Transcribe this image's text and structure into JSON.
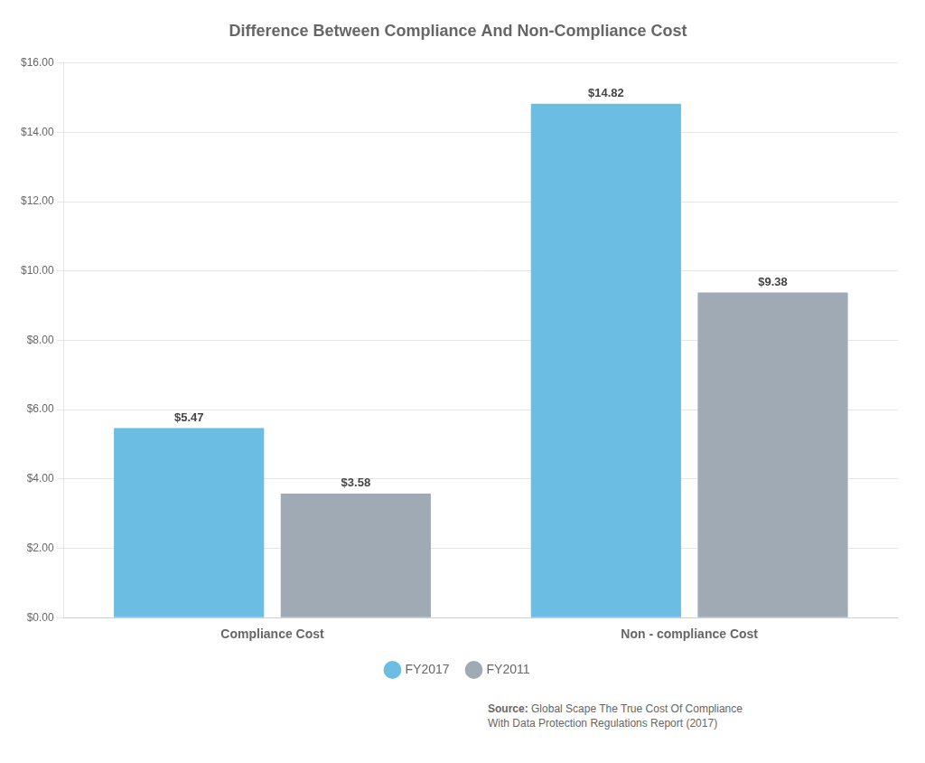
{
  "chart_data": {
    "type": "bar",
    "title": "Difference Between Compliance And Non-Compliance Cost",
    "categories": [
      "Compliance Cost",
      "Non - compliance Cost"
    ],
    "series": [
      {
        "name": "FY2017",
        "color": "#6BBDE3",
        "values": [
          5.47,
          14.82
        ],
        "value_labels": [
          "$5.47",
          "$14.82"
        ]
      },
      {
        "name": "FY2011",
        "color": "#9FAAB5",
        "values": [
          3.58,
          9.38
        ],
        "value_labels": [
          "$3.58",
          "$9.38"
        ]
      }
    ],
    "ylim": [
      0,
      16
    ],
    "yticks": [
      {
        "value": 0,
        "label": "$0.00"
      },
      {
        "value": 2,
        "label": "$2.00"
      },
      {
        "value": 4,
        "label": "$4.00"
      },
      {
        "value": 6,
        "label": "$6.00"
      },
      {
        "value": 8,
        "label": "$8.00"
      },
      {
        "value": 10,
        "label": "$10.00"
      },
      {
        "value": 12,
        "label": "$12.00"
      },
      {
        "value": 14,
        "label": "$14.00"
      },
      {
        "value": 16,
        "label": "$16.00"
      }
    ],
    "grid": true,
    "legend": "bottom",
    "data_labels": true,
    "annotations": [
      "Source:",
      "Global Scape The True Cost Of Compliance\nWith Data Protection Regulations Report (2017)"
    ]
  }
}
